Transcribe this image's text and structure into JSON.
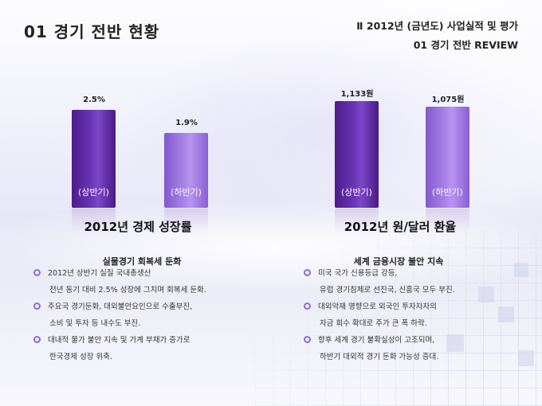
{
  "header": {
    "title": "01  경기 전반 현황",
    "subtitle_line1": "Ⅱ  2012년 (금년도) 사업실적 및 평가",
    "subtitle_line2": "01  경기 전반 REVIEW"
  },
  "colors": {
    "bar_dark": "#5a27a0",
    "bar_light": "#9c74e0",
    "bullet_marker": "#8a6fd0"
  },
  "chart_data": [
    {
      "type": "bar",
      "title": "2012년 경제 성장률",
      "categories": [
        "(상반기)",
        "(하반기)"
      ],
      "values": [
        2.5,
        1.9
      ],
      "value_labels": [
        "2.5%",
        "1.9%"
      ],
      "ylim": [
        0,
        3.0
      ]
    },
    {
      "type": "bar",
      "title": "2012년 원/달러 환율",
      "categories": [
        "(상반기)",
        "(하반기)"
      ],
      "values": [
        1133,
        1075
      ],
      "value_labels": [
        "1,133원",
        "1,075원"
      ],
      "ylim": [
        0,
        1250
      ]
    }
  ],
  "left_section": {
    "heading": "실물경기 회복세 둔화",
    "bullets": [
      {
        "lines": [
          "2012년 상반기 실질 국내총생산",
          "전년 동기 대비 2.5% 성장에 그치며 회복세 둔화."
        ]
      },
      {
        "lines": [
          "주요국 경기둔화, 대외불안요인으로 수출부진,",
          "소비 및 투자 등 내수도 부진."
        ]
      },
      {
        "lines": [
          "대내적 물가 불안 지속 및 가계 부채가 증가로",
          "한국경제 성장 위축."
        ]
      }
    ]
  },
  "right_section": {
    "heading": "세계 금융시장 불안 지속",
    "bullets": [
      {
        "lines": [
          "미국 국가 신용등급 강등,",
          "유럽 경기침체로 선진국, 신흥국 모두 부진."
        ]
      },
      {
        "lines": [
          "대외악재 영향으로 외국인 투자자자의",
          "자금 회수 확대로 주가 큰 폭 하락."
        ]
      },
      {
        "lines": [
          "향후 세계 경기 불확실성이 고조되며,",
          "하반기 대외적 경기 둔화 가능성 증대."
        ]
      }
    ]
  }
}
